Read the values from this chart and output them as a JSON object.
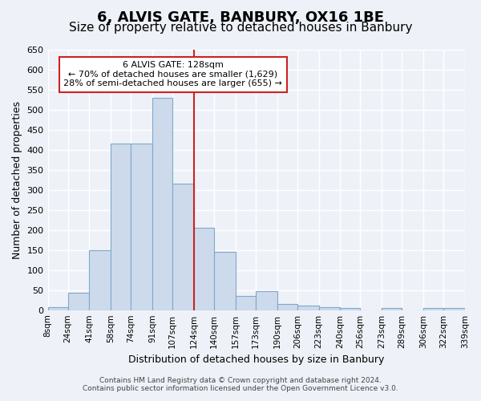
{
  "title": "6, ALVIS GATE, BANBURY, OX16 1BE",
  "subtitle": "Size of property relative to detached houses in Banbury",
  "xlabel": "Distribution of detached houses by size in Banbury",
  "ylabel": "Number of detached properties",
  "bin_edges": [
    8,
    24,
    41,
    58,
    74,
    91,
    107,
    124,
    140,
    157,
    173,
    190,
    206,
    223,
    240,
    256,
    273,
    289,
    306,
    322,
    339
  ],
  "bin_labels": [
    "8sqm",
    "24sqm",
    "41sqm",
    "58sqm",
    "74sqm",
    "91sqm",
    "107sqm",
    "124sqm",
    "140sqm",
    "157sqm",
    "173sqm",
    "190sqm",
    "206sqm",
    "223sqm",
    "240sqm",
    "256sqm",
    "273sqm",
    "289sqm",
    "306sqm",
    "322sqm",
    "339sqm"
  ],
  "bar_heights": [
    8,
    44,
    150,
    415,
    415,
    530,
    315,
    205,
    145,
    35,
    48,
    15,
    12,
    8,
    5,
    0,
    5,
    0,
    5,
    5
  ],
  "bar_color": "#cddaeb",
  "bar_edge_color": "#7da8cc",
  "vline_position": 124,
  "vline_color": "#cc2222",
  "ylim": [
    0,
    650
  ],
  "yticks": [
    0,
    50,
    100,
    150,
    200,
    250,
    300,
    350,
    400,
    450,
    500,
    550,
    600,
    650
  ],
  "annotation_title": "6 ALVIS GATE: 128sqm",
  "annotation_line1": "← 70% of detached houses are smaller (1,629)",
  "annotation_line2": "28% of semi-detached houses are larger (655) →",
  "annotation_box_facecolor": "#ffffff",
  "annotation_box_edgecolor": "#cc2222",
  "footer_line1": "Contains HM Land Registry data © Crown copyright and database right 2024.",
  "footer_line2": "Contains public sector information licensed under the Open Government Licence v3.0.",
  "bg_color": "#eef2f8",
  "grid_color": "#ffffff",
  "title_fontsize": 13,
  "subtitle_fontsize": 11,
  "ylabel_fontsize": 9,
  "xlabel_fontsize": 9,
  "tick_fontsize": 7.5,
  "ytick_fontsize": 8,
  "footer_fontsize": 6.5,
  "annotation_fontsize": 8
}
